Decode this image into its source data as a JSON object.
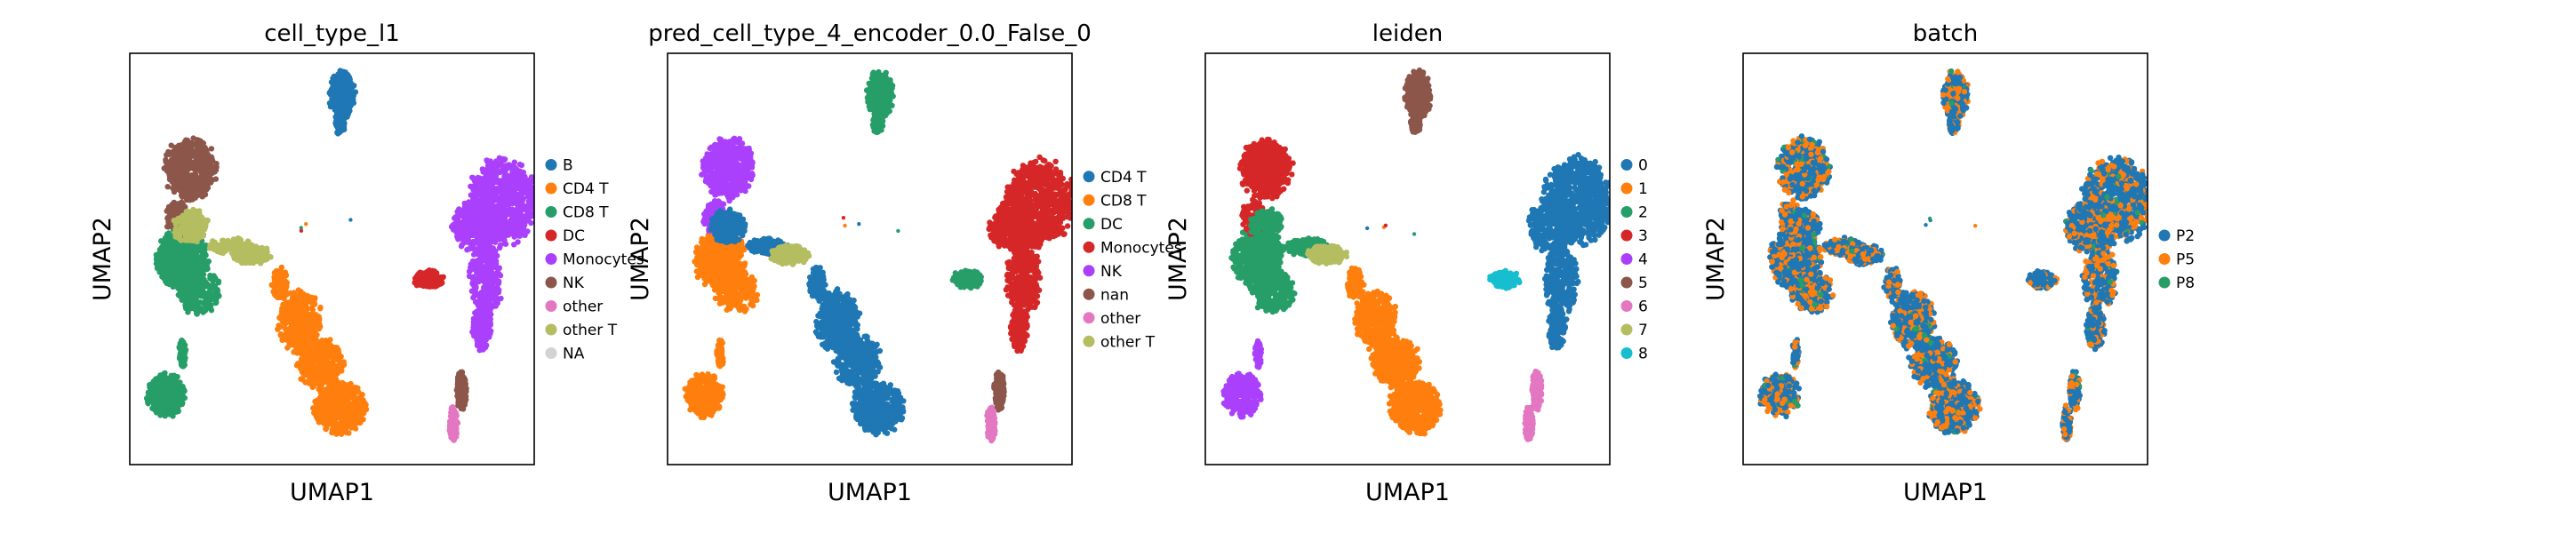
{
  "chart_data": [
    {
      "type": "scatter",
      "title": "cell_type_l1",
      "xlabel": "UMAP1",
      "ylabel": "UMAP2",
      "legend_position": "right",
      "legend": [
        {
          "label": "B",
          "color": "#1f77b4"
        },
        {
          "label": "CD4 T",
          "color": "#ff7f0e"
        },
        {
          "label": "CD8 T",
          "color": "#279e68"
        },
        {
          "label": "DC",
          "color": "#d62728"
        },
        {
          "label": "Monocytes",
          "color": "#aa40fc"
        },
        {
          "label": "NK",
          "color": "#8c564b"
        },
        {
          "label": "other",
          "color": "#e377c2"
        },
        {
          "label": "other T",
          "color": "#b5bd61"
        },
        {
          "label": "NA",
          "color": "#d3d3d3"
        }
      ],
      "clusters": {
        "top": "B",
        "monoMain": "Monocytes",
        "monoTip": "NK",
        "monoLeft": "DC",
        "leftTop": "NK",
        "leftMid": "CD8 T",
        "leftNeck": "other T",
        "leftBottom": "CD8 T",
        "center": "CD4 T",
        "bridge": "other T",
        "lowerRight": "other"
      }
    },
    {
      "type": "scatter",
      "title": "pred_cell_type_4_encoder_0.0_False_0",
      "xlabel": "UMAP1",
      "ylabel": "UMAP2",
      "legend_position": "right",
      "legend": [
        {
          "label": "CD4 T",
          "color": "#1f77b4"
        },
        {
          "label": "CD8 T",
          "color": "#ff7f0e"
        },
        {
          "label": "DC",
          "color": "#279e68"
        },
        {
          "label": "Monocytes",
          "color": "#d62728"
        },
        {
          "label": "NK",
          "color": "#aa40fc"
        },
        {
          "label": "nan",
          "color": "#8c564b"
        },
        {
          "label": "other",
          "color": "#e377c2"
        },
        {
          "label": "other T",
          "color": "#b5bd61"
        }
      ],
      "clusters": {
        "top": "DC",
        "monoMain": "Monocytes",
        "monoTip": "nan",
        "monoLeft": "DC",
        "leftTop": "NK",
        "leftMid": "CD8 T",
        "leftNeck": "CD4 T",
        "leftBottom": "CD8 T",
        "center": "CD4 T",
        "bridge": "other T",
        "lowerRight": "other"
      }
    },
    {
      "type": "scatter",
      "title": "leiden",
      "xlabel": "UMAP1",
      "ylabel": "UMAP2",
      "legend_position": "right",
      "legend": [
        {
          "label": "0",
          "color": "#1f77b4"
        },
        {
          "label": "1",
          "color": "#ff7f0e"
        },
        {
          "label": "2",
          "color": "#279e68"
        },
        {
          "label": "3",
          "color": "#d62728"
        },
        {
          "label": "4",
          "color": "#aa40fc"
        },
        {
          "label": "5",
          "color": "#8c564b"
        },
        {
          "label": "6",
          "color": "#e377c2"
        },
        {
          "label": "7",
          "color": "#b5bd61"
        },
        {
          "label": "8",
          "color": "#17becf"
        }
      ],
      "clusters": {
        "top": "5",
        "monoMain": "0",
        "monoTip": "6",
        "monoLeft": "8",
        "leftTop": "3",
        "leftMid": "2",
        "leftNeck": "2",
        "leftBottom": "4",
        "center": "1",
        "bridge": "7",
        "lowerRight": "6"
      }
    },
    {
      "type": "scatter",
      "title": "batch",
      "xlabel": "UMAP1",
      "ylabel": "UMAP2",
      "legend_position": "right",
      "legend": [
        {
          "label": "P2",
          "color": "#1f77b4"
        },
        {
          "label": "P5",
          "color": "#ff7f0e"
        },
        {
          "label": "P8",
          "color": "#279e68"
        }
      ],
      "clusters": {
        "top": "mix",
        "monoMain": "mix",
        "monoTip": "mix",
        "monoLeft": "mix",
        "leftTop": "mix",
        "leftMid": "mix",
        "leftNeck": "mix",
        "leftBottom": "mix",
        "center": "mix",
        "bridge": "mix",
        "lowerRight": "mix"
      },
      "mix_weights": [
        0.62,
        0.33,
        0.05
      ]
    }
  ]
}
